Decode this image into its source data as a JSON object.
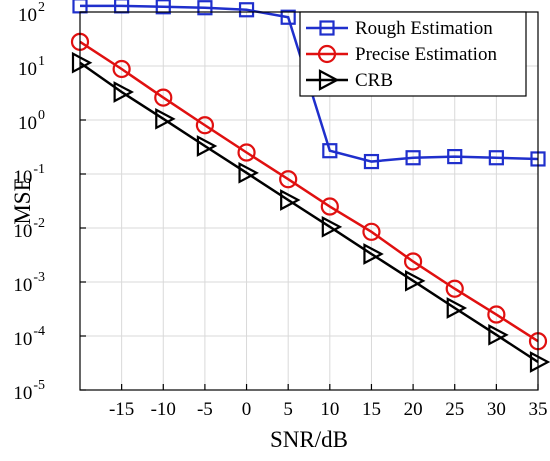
{
  "chart_data": {
    "type": "line",
    "xlabel": "SNR/dB",
    "ylabel": "MSE",
    "y_scale": "log",
    "grid": true,
    "legend_position": "top-right",
    "xlim": [
      -20,
      35
    ],
    "ylim_exponent": [
      -5,
      2
    ],
    "x_ticks": [
      {
        "value": -15,
        "label": "-15"
      },
      {
        "value": -10,
        "label": "-10"
      },
      {
        "value": -5,
        "label": "-5"
      },
      {
        "value": 0,
        "label": "0"
      },
      {
        "value": 5,
        "label": "5"
      },
      {
        "value": 10,
        "label": "10"
      },
      {
        "value": 15,
        "label": "15"
      },
      {
        "value": 20,
        "label": "20"
      },
      {
        "value": 25,
        "label": "25"
      },
      {
        "value": 30,
        "label": "30"
      },
      {
        "value": 35,
        "label": "35"
      }
    ],
    "y_ticks": [
      {
        "exp": -5,
        "base": "10",
        "sup": "-5"
      },
      {
        "exp": -4,
        "base": "10",
        "sup": "-4"
      },
      {
        "exp": -3,
        "base": "10",
        "sup": "-3"
      },
      {
        "exp": -2,
        "base": "10",
        "sup": "-2"
      },
      {
        "exp": -1,
        "base": "10",
        "sup": "-1"
      },
      {
        "exp": 0,
        "base": "10",
        "sup": "0"
      },
      {
        "exp": 1,
        "base": "10",
        "sup": "1"
      },
      {
        "exp": 2,
        "base": "10",
        "sup": "2"
      }
    ],
    "x": [
      -20,
      -15,
      -10,
      -5,
      0,
      5,
      10,
      15,
      20,
      25,
      30,
      35
    ],
    "series": [
      {
        "name": "Rough Estimation",
        "color": "#1f2fcc",
        "marker": "square",
        "values": [
          130,
          130,
          125,
          120,
          110,
          80,
          0.27,
          0.17,
          0.2,
          0.21,
          0.2,
          0.19
        ]
      },
      {
        "name": "Precise Estimation",
        "color": "#e01010",
        "marker": "circle",
        "values": [
          28,
          8.8,
          2.6,
          0.8,
          0.25,
          0.08,
          0.025,
          0.0085,
          0.0024,
          0.00075,
          0.00025,
          8e-05
        ]
      },
      {
        "name": "CRB",
        "color": "#000000",
        "marker": "triangle-right",
        "values": [
          11.5,
          3.3,
          1.05,
          0.33,
          0.105,
          0.033,
          0.0105,
          0.0033,
          0.00105,
          0.00033,
          0.000105,
          3.3e-05
        ]
      }
    ]
  }
}
